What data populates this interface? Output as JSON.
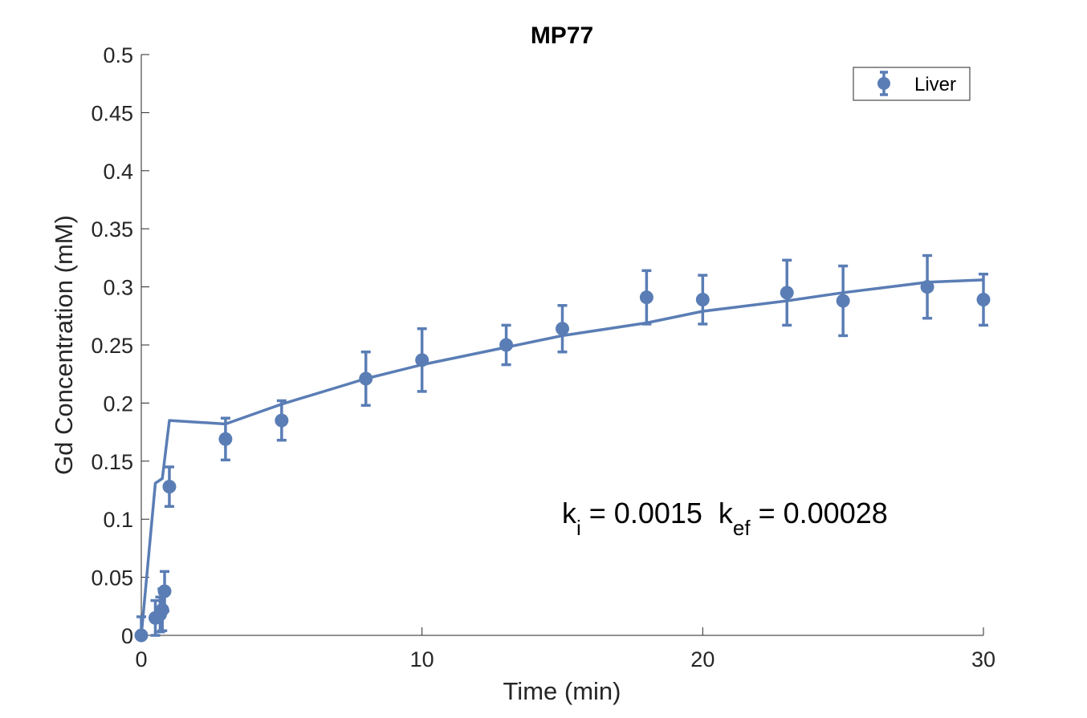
{
  "chart_data": {
    "type": "scatter",
    "title": "MP77",
    "xlabel": "Time (min)",
    "ylabel": "Gd Concentration (mM)",
    "xlim": [
      0,
      30
    ],
    "ylim": [
      0,
      0.5
    ],
    "xticks": [
      0,
      10,
      20,
      30
    ],
    "xtick_labels": [
      "0",
      "10",
      "20",
      "30"
    ],
    "yticks": [
      0,
      0.05,
      0.1,
      0.15,
      0.2,
      0.25,
      0.3,
      0.35,
      0.4,
      0.45,
      0.5
    ],
    "ytick_labels": [
      "0",
      "0.05",
      "0.1",
      "0.15",
      "0.2",
      "0.25",
      "0.3",
      "0.35",
      "0.4",
      "0.45",
      "0.5"
    ],
    "grid": false,
    "legend": {
      "position": "top-right",
      "entries": [
        "Liver"
      ]
    },
    "color": "#5a7db5",
    "series": [
      {
        "name": "Liver",
        "kind": "errorbar-points",
        "x": [
          0,
          0.5,
          0.67,
          0.75,
          0.83,
          1,
          3,
          5,
          8,
          10,
          13,
          15,
          18,
          20,
          23,
          25,
          28,
          30
        ],
        "y": [
          0,
          0.015,
          0.018,
          0.022,
          0.038,
          0.128,
          0.169,
          0.185,
          0.221,
          0.237,
          0.25,
          0.264,
          0.291,
          0.289,
          0.295,
          0.288,
          0.3,
          0.289
        ],
        "err": [
          0.016,
          0.015,
          0.015,
          0.018,
          0.017,
          0.017,
          0.018,
          0.017,
          0.023,
          0.027,
          0.017,
          0.02,
          0.023,
          0.021,
          0.028,
          0.03,
          0.027,
          0.022
        ]
      },
      {
        "kind": "fit-line",
        "x": [
          0,
          0.5,
          0.75,
          1,
          3,
          5,
          8,
          10,
          13,
          15,
          18,
          20,
          23,
          25,
          28,
          30
        ],
        "y": [
          0,
          0.131,
          0.135,
          0.185,
          0.182,
          0.199,
          0.221,
          0.233,
          0.248,
          0.258,
          0.269,
          0.279,
          0.288,
          0.295,
          0.304,
          0.306
        ]
      }
    ],
    "annotation": {
      "k_symbol": "k",
      "ki_sub": "i",
      "ki_value": " = 0.0015  ",
      "kef_sub": "ef",
      "kef_value": " = 0.00028"
    }
  }
}
